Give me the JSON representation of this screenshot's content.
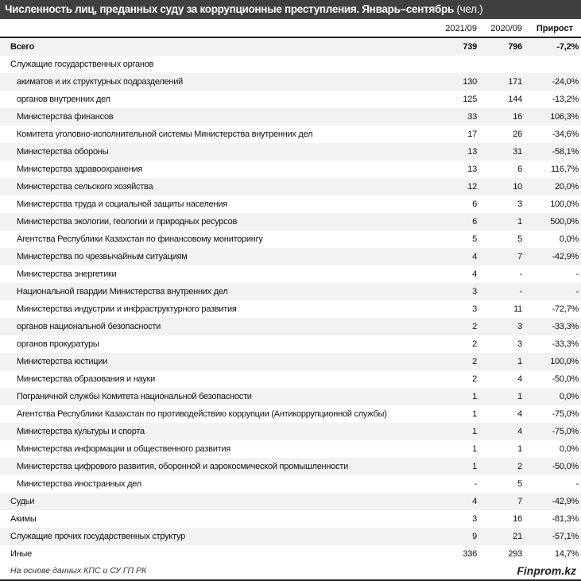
{
  "title": "Численность лиц, преданных суду за коррупционные преступления. Январь–сентябрь",
  "unit": "(чел.)",
  "columns": [
    "2021/09",
    "2020/09",
    "Прирост"
  ],
  "rows": [
    {
      "label": "Всего",
      "v1": "739",
      "v2": "796",
      "v3": "-7,2%",
      "type": "bold"
    },
    {
      "label": "Служащие государственных органов",
      "v1": "",
      "v2": "",
      "v3": "",
      "type": "top"
    },
    {
      "label": "акиматов и их структурных подразделений",
      "v1": "130",
      "v2": "171",
      "v3": "-24,0%",
      "type": "sub"
    },
    {
      "label": "органов внутренних дел",
      "v1": "125",
      "v2": "144",
      "v3": "-13,2%",
      "type": "sub"
    },
    {
      "label": "Министерства финансов",
      "v1": "33",
      "v2": "16",
      "v3": "106,3%",
      "type": "sub"
    },
    {
      "label": "Комитета уголовно-исполнительной системы Министерства внутренних дел",
      "v1": "17",
      "v2": "26",
      "v3": "-34,6%",
      "type": "sub"
    },
    {
      "label": "Министерства обороны",
      "v1": "13",
      "v2": "31",
      "v3": "-58,1%",
      "type": "sub"
    },
    {
      "label": "Министерства здравоохранения",
      "v1": "13",
      "v2": "6",
      "v3": "116,7%",
      "type": "sub"
    },
    {
      "label": "Министерства сельского хозяйства",
      "v1": "12",
      "v2": "10",
      "v3": "20,0%",
      "type": "sub"
    },
    {
      "label": "Министерства труда и социальной защиты населения",
      "v1": "6",
      "v2": "3",
      "v3": "100,0%",
      "type": "sub"
    },
    {
      "label": "Министерства экологии, геологии и природных ресурсов",
      "v1": "6",
      "v2": "1",
      "v3": "500,0%",
      "type": "sub"
    },
    {
      "label": "Агентства Республики Казахстан по финансовому мониторингу",
      "v1": "5",
      "v2": "5",
      "v3": "0,0%",
      "type": "sub"
    },
    {
      "label": "Министерства по чрезвычайным ситуациям",
      "v1": "4",
      "v2": "7",
      "v3": "-42,9%",
      "type": "sub"
    },
    {
      "label": "Министерства энергетики",
      "v1": "4",
      "v2": "-",
      "v3": "-",
      "type": "sub"
    },
    {
      "label": "Национальной гвардии Министерства внутренних дел",
      "v1": "3",
      "v2": "-",
      "v3": "-",
      "type": "sub"
    },
    {
      "label": "Министерства индустрии и инфраструктурного развития",
      "v1": "3",
      "v2": "11",
      "v3": "-72,7%",
      "type": "sub"
    },
    {
      "label": "органов национальной безопасности",
      "v1": "2",
      "v2": "3",
      "v3": "-33,3%",
      "type": "sub"
    },
    {
      "label": "органов прокуратуры",
      "v1": "2",
      "v2": "3",
      "v3": "-33,3%",
      "type": "sub"
    },
    {
      "label": "Министерства юстиции",
      "v1": "2",
      "v2": "1",
      "v3": "100,0%",
      "type": "sub"
    },
    {
      "label": "Министерства образования и науки",
      "v1": "2",
      "v2": "4",
      "v3": "-50,0%",
      "type": "sub"
    },
    {
      "label": "Пограничной службы Комитета национальной безопасности",
      "v1": "1",
      "v2": "1",
      "v3": "0,0%",
      "type": "sub"
    },
    {
      "label": "Агентства Республики Казахстан по противодействию коррупции (Антикоррупционной службы)",
      "v1": "1",
      "v2": "4",
      "v3": "-75,0%",
      "type": "sub"
    },
    {
      "label": "Министерства культуры и спорта",
      "v1": "1",
      "v2": "4",
      "v3": "-75,0%",
      "type": "sub"
    },
    {
      "label": "Министерства информации и общественного развития",
      "v1": "1",
      "v2": "1",
      "v3": "0,0%",
      "type": "sub"
    },
    {
      "label": "Министерства цифрового развития, оборонной и аэрокосмической промышленности",
      "v1": "1",
      "v2": "2",
      "v3": "-50,0%",
      "type": "sub"
    },
    {
      "label": "Министерства иностранных дел",
      "v1": "-",
      "v2": "5",
      "v3": "-",
      "type": "sub"
    },
    {
      "label": "Судьи",
      "v1": "4",
      "v2": "7",
      "v3": "-42,9%",
      "type": "top"
    },
    {
      "label": "Акимы",
      "v1": "3",
      "v2": "16",
      "v3": "-81,3%",
      "type": "top"
    },
    {
      "label": "Служащие прочих государственных структур",
      "v1": "9",
      "v2": "21",
      "v3": "-57,1%",
      "type": "top"
    },
    {
      "label": "Иные",
      "v1": "336",
      "v2": "293",
      "v3": "14,7%",
      "type": "top"
    }
  ],
  "footer": {
    "source": "На основе данных КПС и СУ ГП РК",
    "brand": "Finprom.kz"
  }
}
